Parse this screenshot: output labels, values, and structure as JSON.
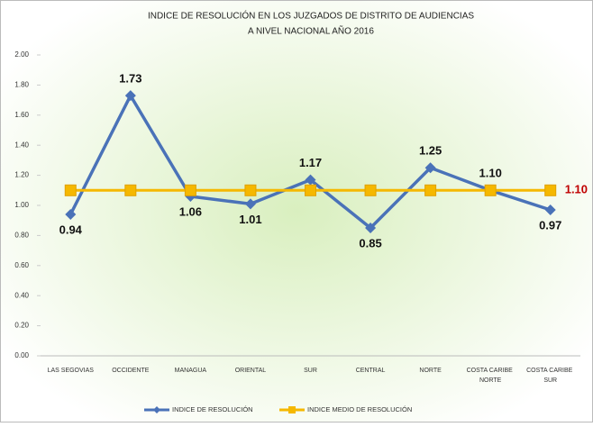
{
  "chart_data": {
    "type": "line",
    "title": [
      "INDICE DE RESOLUCIÓN EN LOS JUZGADOS DE DISTRITO DE AUDIENCIAS",
      "A NIVEL NACIONAL AÑO 2016"
    ],
    "categories": [
      "LAS SEGOVIAS",
      "OCCIDENTE",
      "MANAGUA",
      "ORIENTAL",
      "SUR",
      "CENTRAL",
      "NORTE",
      "COSTA CARIBE NORTE",
      "COSTA CARIBE SUR"
    ],
    "series": [
      {
        "name": "INDICE DE RESOLUCIÓN",
        "color": "#4a72b8",
        "marker": "diamond",
        "values": [
          0.94,
          1.73,
          1.06,
          1.01,
          1.17,
          0.85,
          1.25,
          1.1,
          0.97
        ],
        "value_labels": [
          "0.94",
          "1.73",
          "1.06",
          "1.01",
          "1.17",
          "0.85",
          "1.25",
          "1.10",
          "0.97"
        ],
        "label_color": "#111111"
      },
      {
        "name": "INDICE MEDIO DE RESOLUCIÓN",
        "color": "#f5b800",
        "marker": "square",
        "values": [
          1.1,
          1.1,
          1.1,
          1.1,
          1.1,
          1.1,
          1.1,
          1.1,
          1.1
        ],
        "value_labels": [
          null,
          null,
          null,
          null,
          null,
          null,
          null,
          null,
          "1.10"
        ],
        "label_color": "#c00000"
      }
    ],
    "ylim": [
      0,
      2
    ],
    "yticks": [
      {
        "value": 0,
        "label": "0.00"
      },
      {
        "value": 0.2,
        "label": "0.20"
      },
      {
        "value": 0.4,
        "label": "0.40"
      },
      {
        "value": 0.6,
        "label": "0.60"
      },
      {
        "value": 0.8,
        "label": "0.80"
      },
      {
        "value": 1,
        "label": "1.00"
      },
      {
        "value": 1.2,
        "label": "1.20"
      },
      {
        "value": 1.4,
        "label": "1.40"
      },
      {
        "value": 1.6,
        "label": "1.60"
      },
      {
        "value": 1.8,
        "label": "1.80"
      },
      {
        "value": 2,
        "label": "2.00"
      }
    ],
    "legend": "bottom"
  }
}
